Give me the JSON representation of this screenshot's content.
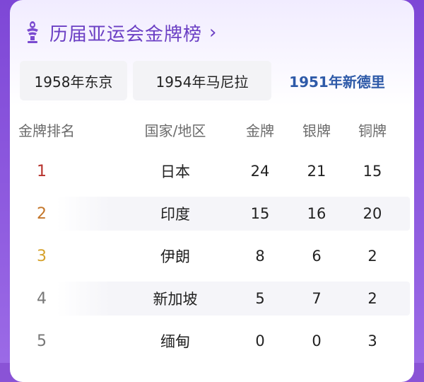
{
  "header": {
    "title": "历届亚运会金牌榜",
    "chevron": "›"
  },
  "tabs": [
    {
      "label": "1958年东京"
    },
    {
      "label": "1954年马尼拉"
    },
    {
      "label": "1951年新德里",
      "selected": true
    }
  ],
  "table": {
    "columns": [
      "金牌排名",
      "国家/地区",
      "金牌",
      "银牌",
      "铜牌"
    ],
    "rows": [
      {
        "rank": "1",
        "country": "日本",
        "gold": "24",
        "silver": "21",
        "bronze": "15",
        "rank_color": "#b7322c"
      },
      {
        "rank": "2",
        "country": "印度",
        "gold": "15",
        "silver": "16",
        "bronze": "20",
        "rank_color": "#c4762a"
      },
      {
        "rank": "3",
        "country": "伊朗",
        "gold": "8",
        "silver": "6",
        "bronze": "2",
        "rank_color": "#d6a22c"
      },
      {
        "rank": "4",
        "country": "新加坡",
        "gold": "5",
        "silver": "7",
        "bronze": "2",
        "rank_color": "#777777"
      },
      {
        "rank": "5",
        "country": "缅甸",
        "gold": "0",
        "silver": "0",
        "bronze": "3",
        "rank_color": "#777777"
      }
    ]
  },
  "colors": {
    "accent": "#6b3fc4",
    "selected_tab": "#2e5aa8",
    "frame": "#8a53d6"
  },
  "icons": {
    "logo": "asian-games-torch-icon"
  }
}
